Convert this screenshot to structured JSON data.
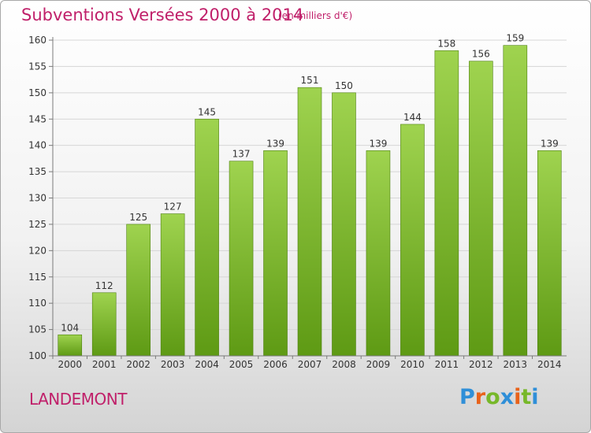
{
  "header": {
    "title": "Subventions Versées 2000 à 2014",
    "unit_note": "(en milliers d'€)"
  },
  "footer": {
    "place_name": "LANDEMONT",
    "logo": {
      "text": "Proxiti",
      "letters": [
        "P",
        "r",
        "o",
        "x",
        "i",
        "t",
        "i"
      ],
      "colors": [
        "#2f8fd8",
        "#e8621a",
        "#77b82a",
        "#2f8fd8",
        "#e8621a",
        "#77b82a",
        "#2f8fd8"
      ]
    }
  },
  "colors": {
    "accent": "#c0206a",
    "bar_top": "#9fd34f",
    "bar_bottom": "#5e9a14",
    "bar_edge": "#4e8010",
    "grid": "#d6d6d6",
    "axis": "#7a7a7a",
    "text": "#333333"
  },
  "chart_data": {
    "type": "bar",
    "title": "Subventions Versées 2000 à 2014",
    "subtitle": "(en milliers d'€)",
    "categories": [
      "2000",
      "2001",
      "2002",
      "2003",
      "2004",
      "2005",
      "2006",
      "2007",
      "2008",
      "2009",
      "2010",
      "2011",
      "2012",
      "2013",
      "2014"
    ],
    "values": [
      104,
      112,
      125,
      127,
      145,
      137,
      139,
      151,
      150,
      139,
      144,
      158,
      156,
      159,
      139
    ],
    "data_labels": [
      "104",
      "112",
      "125",
      "127",
      "145",
      "137",
      "139",
      "151",
      "150",
      "139",
      "144",
      "158",
      "156",
      "159",
      "139"
    ],
    "ylim": [
      100,
      160
    ],
    "yticks": [
      100,
      105,
      110,
      115,
      120,
      125,
      130,
      135,
      140,
      145,
      150,
      155,
      160
    ],
    "ytick_labels": [
      "100",
      "105",
      "110",
      "115",
      "120",
      "125",
      "130",
      "135",
      "140",
      "145",
      "150",
      "155",
      "160"
    ],
    "grid": true,
    "legend": "none"
  }
}
